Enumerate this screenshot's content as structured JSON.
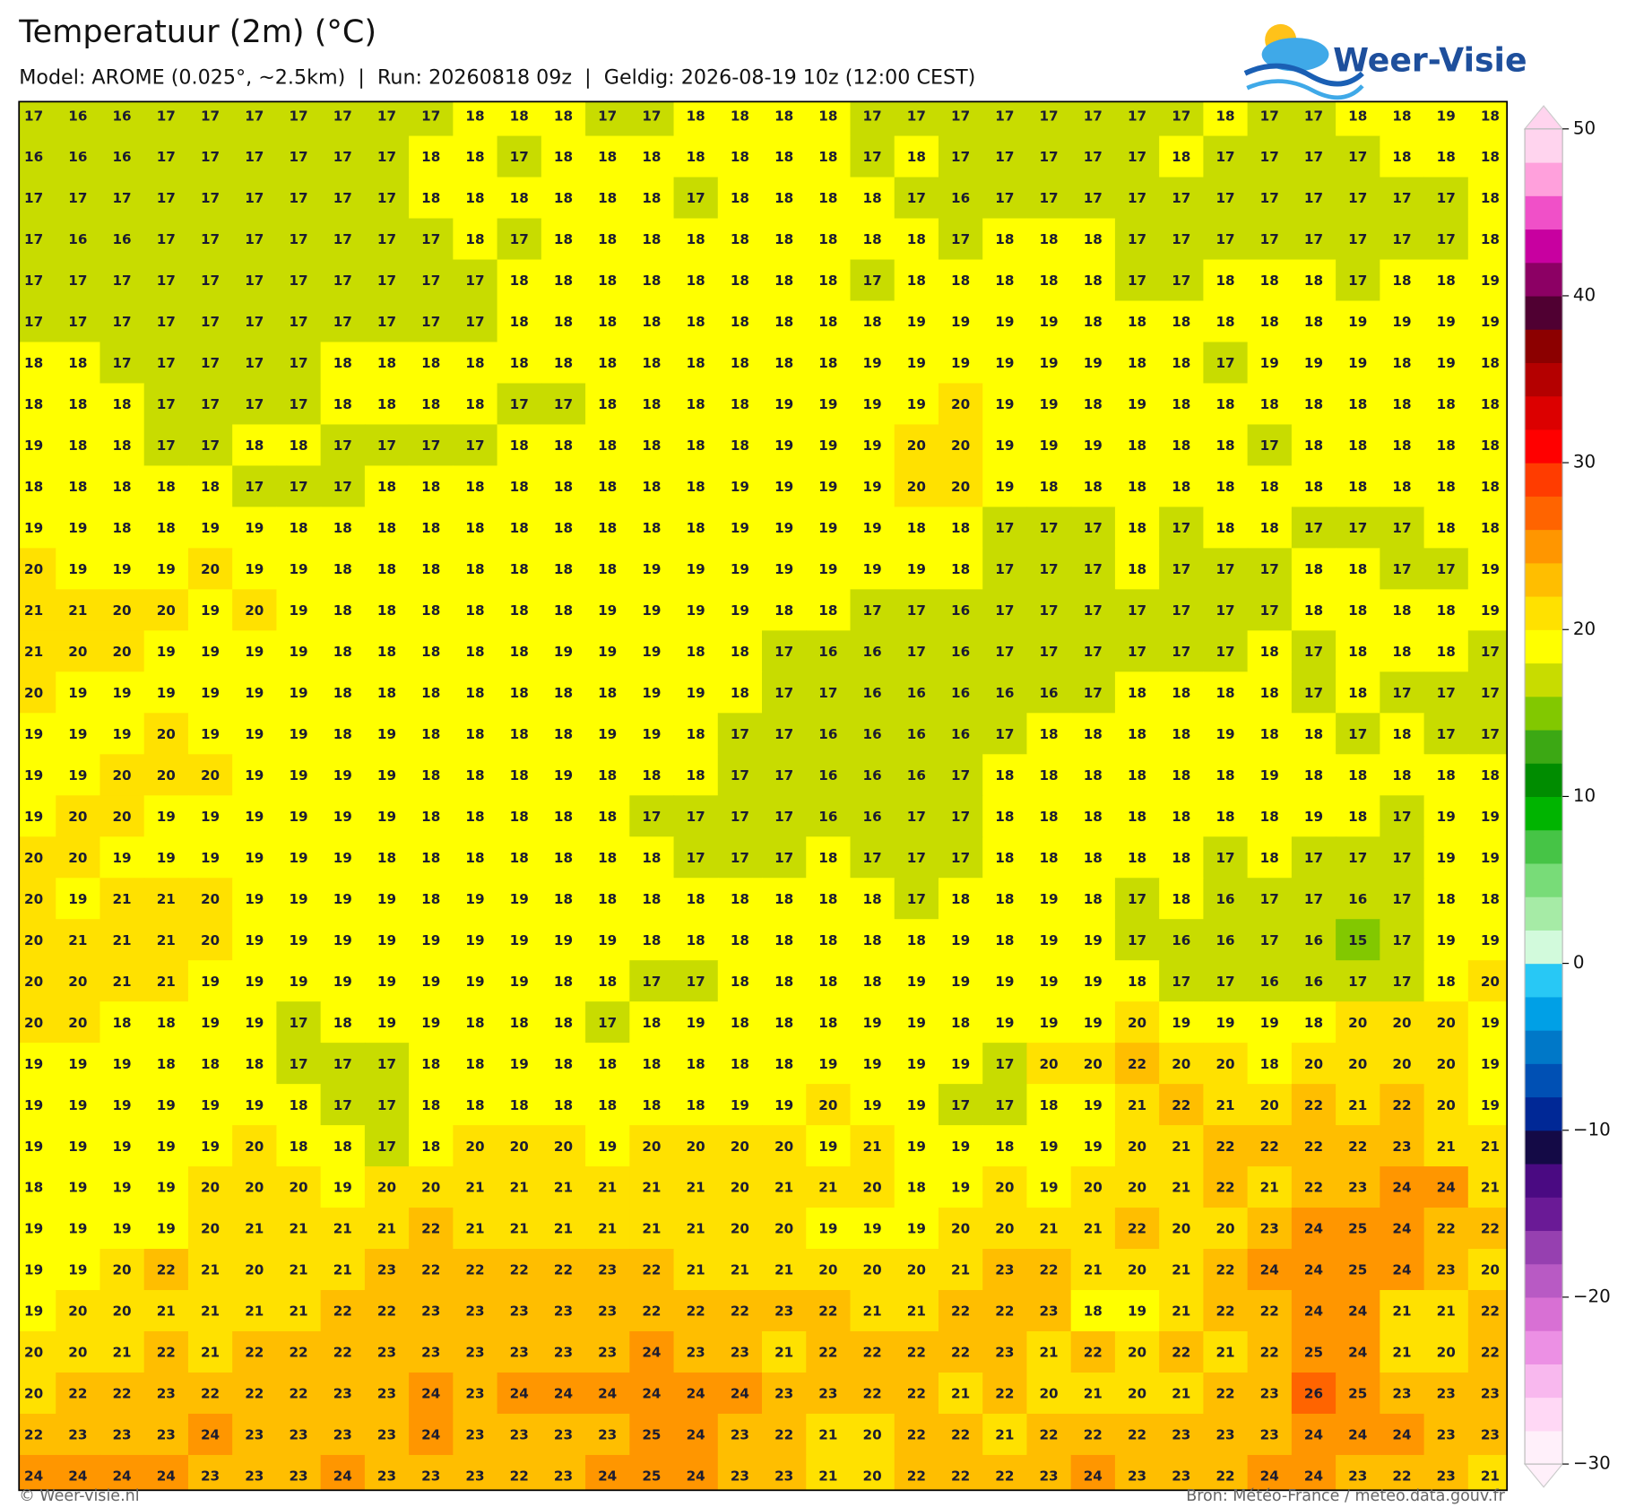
{
  "header": {
    "title": "Temperatuur (2m) (°C)",
    "subtitle": "Model: AROME (0.025°, ~2.5km)  |  Run: 20260818 09z  |  Geldig: 2026-08-19 10z (12:00 CEST)"
  },
  "logo": {
    "text": "Weer-Visie"
  },
  "map": {
    "rows": [
      [
        17,
        16,
        16,
        17,
        17,
        17,
        17,
        17,
        17,
        17,
        18,
        18,
        18,
        17,
        17,
        18,
        18,
        18,
        18,
        17,
        17,
        17,
        17,
        17,
        17,
        17,
        17,
        18,
        17,
        17,
        18,
        18,
        19,
        18
      ],
      [
        16,
        16,
        16,
        17,
        17,
        17,
        17,
        17,
        17,
        18,
        18,
        17,
        18,
        18,
        18,
        18,
        18,
        18,
        18,
        17,
        18,
        17,
        17,
        17,
        17,
        17,
        18,
        17,
        17,
        17,
        17,
        18,
        18,
        18
      ],
      [
        17,
        17,
        17,
        17,
        17,
        17,
        17,
        17,
        17,
        18,
        18,
        18,
        18,
        18,
        18,
        17,
        18,
        18,
        18,
        18,
        17,
        16,
        17,
        17,
        17,
        17,
        17,
        17,
        17,
        17,
        17,
        17,
        17,
        18
      ],
      [
        17,
        16,
        16,
        17,
        17,
        17,
        17,
        17,
        17,
        17,
        18,
        17,
        18,
        18,
        18,
        18,
        18,
        18,
        18,
        18,
        18,
        17,
        18,
        18,
        18,
        17,
        17,
        17,
        17,
        17,
        17,
        17,
        17,
        18
      ],
      [
        17,
        17,
        17,
        17,
        17,
        17,
        17,
        17,
        17,
        17,
        17,
        18,
        18,
        18,
        18,
        18,
        18,
        18,
        18,
        17,
        18,
        18,
        18,
        18,
        18,
        17,
        17,
        18,
        18,
        18,
        17,
        18,
        18,
        19
      ],
      [
        17,
        17,
        17,
        17,
        17,
        17,
        17,
        17,
        17,
        17,
        17,
        18,
        18,
        18,
        18,
        18,
        18,
        18,
        18,
        18,
        19,
        19,
        19,
        19,
        18,
        18,
        18,
        18,
        18,
        18,
        19,
        19,
        19,
        19
      ],
      [
        18,
        18,
        17,
        17,
        17,
        17,
        17,
        18,
        18,
        18,
        18,
        18,
        18,
        18,
        18,
        18,
        18,
        18,
        18,
        19,
        19,
        19,
        19,
        19,
        19,
        18,
        18,
        17,
        19,
        19,
        19,
        18,
        19,
        18
      ],
      [
        18,
        18,
        18,
        17,
        17,
        17,
        17,
        18,
        18,
        18,
        18,
        17,
        17,
        18,
        18,
        18,
        18,
        19,
        19,
        19,
        19,
        20,
        19,
        19,
        18,
        19,
        18,
        18,
        18,
        18,
        18,
        18,
        18,
        18
      ],
      [
        19,
        18,
        18,
        17,
        17,
        18,
        18,
        17,
        17,
        17,
        17,
        18,
        18,
        18,
        18,
        18,
        18,
        19,
        19,
        19,
        20,
        20,
        19,
        19,
        19,
        18,
        18,
        18,
        17,
        18,
        18,
        18,
        18,
        18
      ],
      [
        18,
        18,
        18,
        18,
        18,
        17,
        17,
        17,
        18,
        18,
        18,
        18,
        18,
        18,
        18,
        18,
        19,
        19,
        19,
        19,
        20,
        20,
        19,
        18,
        18,
        18,
        18,
        18,
        18,
        18,
        18,
        18,
        18,
        18
      ],
      [
        19,
        19,
        18,
        18,
        19,
        19,
        18,
        18,
        18,
        18,
        18,
        18,
        18,
        18,
        18,
        18,
        19,
        19,
        19,
        19,
        18,
        18,
        17,
        17,
        17,
        18,
        17,
        18,
        18,
        17,
        17,
        17,
        18,
        18
      ],
      [
        20,
        19,
        19,
        19,
        20,
        19,
        19,
        18,
        18,
        18,
        18,
        18,
        18,
        18,
        19,
        19,
        19,
        19,
        19,
        19,
        19,
        18,
        17,
        17,
        17,
        18,
        17,
        17,
        17,
        18,
        18,
        17,
        17,
        19
      ],
      [
        21,
        21,
        20,
        20,
        19,
        20,
        19,
        18,
        18,
        18,
        18,
        18,
        18,
        19,
        19,
        19,
        19,
        18,
        18,
        17,
        17,
        16,
        17,
        17,
        17,
        17,
        17,
        17,
        17,
        18,
        18,
        18,
        18,
        19
      ],
      [
        21,
        20,
        20,
        19,
        19,
        19,
        19,
        18,
        18,
        18,
        18,
        18,
        19,
        19,
        19,
        18,
        18,
        17,
        16,
        16,
        17,
        16,
        17,
        17,
        17,
        17,
        17,
        17,
        18,
        17,
        18,
        18,
        18,
        17
      ],
      [
        20,
        19,
        19,
        19,
        19,
        19,
        19,
        18,
        18,
        18,
        18,
        18,
        18,
        18,
        19,
        19,
        18,
        17,
        17,
        16,
        16,
        16,
        16,
        16,
        17,
        18,
        18,
        18,
        18,
        17,
        18,
        17,
        17,
        17
      ],
      [
        19,
        19,
        19,
        20,
        19,
        19,
        19,
        18,
        19,
        18,
        18,
        18,
        18,
        19,
        19,
        18,
        17,
        17,
        16,
        16,
        16,
        16,
        17,
        18,
        18,
        18,
        18,
        19,
        18,
        18,
        17,
        18,
        17,
        17
      ],
      [
        19,
        19,
        20,
        20,
        20,
        19,
        19,
        19,
        19,
        18,
        18,
        18,
        19,
        18,
        18,
        18,
        17,
        17,
        16,
        16,
        16,
        17,
        18,
        18,
        18,
        18,
        18,
        18,
        19,
        18,
        18,
        18,
        18,
        18
      ],
      [
        19,
        20,
        20,
        19,
        19,
        19,
        19,
        19,
        19,
        18,
        18,
        18,
        18,
        18,
        17,
        17,
        17,
        17,
        16,
        16,
        17,
        17,
        18,
        18,
        18,
        18,
        18,
        18,
        18,
        19,
        18,
        17,
        19,
        19
      ],
      [
        20,
        20,
        19,
        19,
        19,
        19,
        19,
        19,
        18,
        18,
        18,
        18,
        18,
        18,
        18,
        17,
        17,
        17,
        18,
        17,
        17,
        17,
        18,
        18,
        18,
        18,
        18,
        17,
        18,
        17,
        17,
        17,
        19,
        19
      ],
      [
        20,
        19,
        21,
        21,
        20,
        19,
        19,
        19,
        19,
        18,
        19,
        19,
        18,
        18,
        18,
        18,
        18,
        18,
        18,
        18,
        17,
        18,
        18,
        19,
        18,
        17,
        18,
        16,
        17,
        17,
        16,
        17,
        18,
        18
      ],
      [
        20,
        21,
        21,
        21,
        20,
        19,
        19,
        19,
        19,
        19,
        19,
        19,
        19,
        19,
        18,
        18,
        18,
        18,
        18,
        18,
        18,
        19,
        18,
        19,
        19,
        17,
        16,
        16,
        17,
        16,
        15,
        17,
        19,
        19
      ],
      [
        20,
        20,
        21,
        21,
        19,
        19,
        19,
        19,
        19,
        19,
        19,
        19,
        18,
        18,
        17,
        17,
        18,
        18,
        18,
        18,
        19,
        19,
        19,
        19,
        19,
        18,
        17,
        17,
        16,
        16,
        17,
        17,
        18,
        20
      ],
      [
        20,
        20,
        18,
        18,
        19,
        19,
        17,
        18,
        19,
        19,
        18,
        18,
        18,
        17,
        18,
        19,
        18,
        18,
        18,
        19,
        19,
        18,
        19,
        19,
        19,
        20,
        19,
        19,
        19,
        18,
        20,
        20,
        20,
        19
      ],
      [
        19,
        19,
        19,
        18,
        18,
        18,
        17,
        17,
        17,
        18,
        18,
        19,
        18,
        18,
        18,
        18,
        18,
        18,
        19,
        19,
        19,
        19,
        17,
        20,
        20,
        22,
        20,
        20,
        18,
        20,
        20,
        20,
        20,
        19
      ],
      [
        19,
        19,
        19,
        19,
        19,
        19,
        18,
        17,
        17,
        18,
        18,
        18,
        18,
        18,
        18,
        18,
        19,
        19,
        20,
        19,
        19,
        17,
        17,
        18,
        19,
        21,
        22,
        21,
        20,
        22,
        21,
        22,
        20,
        19
      ],
      [
        19,
        19,
        19,
        19,
        19,
        20,
        18,
        18,
        17,
        18,
        20,
        20,
        20,
        19,
        20,
        20,
        20,
        20,
        19,
        21,
        19,
        19,
        18,
        19,
        19,
        20,
        21,
        22,
        22,
        22,
        22,
        23,
        21,
        21
      ],
      [
        18,
        19,
        19,
        19,
        20,
        20,
        20,
        19,
        20,
        20,
        21,
        21,
        21,
        21,
        21,
        21,
        20,
        21,
        21,
        20,
        18,
        19,
        20,
        19,
        20,
        20,
        21,
        22,
        21,
        22,
        23,
        24,
        24,
        21
      ],
      [
        19,
        19,
        19,
        19,
        20,
        21,
        21,
        21,
        21,
        22,
        21,
        21,
        21,
        21,
        21,
        21,
        20,
        20,
        19,
        19,
        19,
        20,
        20,
        21,
        21,
        22,
        20,
        20,
        23,
        24,
        25,
        24,
        22,
        22
      ],
      [
        19,
        19,
        20,
        22,
        21,
        20,
        21,
        21,
        23,
        22,
        22,
        22,
        22,
        23,
        22,
        21,
        21,
        21,
        20,
        20,
        20,
        21,
        23,
        22,
        21,
        20,
        21,
        22,
        24,
        24,
        25,
        24,
        23,
        20
      ],
      [
        19,
        20,
        20,
        21,
        21,
        21,
        21,
        22,
        22,
        23,
        23,
        23,
        23,
        23,
        22,
        22,
        22,
        23,
        22,
        21,
        21,
        22,
        22,
        23,
        18,
        19,
        21,
        22,
        22,
        24,
        24,
        21,
        21,
        22
      ],
      [
        20,
        20,
        21,
        22,
        21,
        22,
        22,
        22,
        23,
        23,
        23,
        23,
        23,
        23,
        24,
        23,
        23,
        21,
        22,
        22,
        22,
        22,
        23,
        21,
        22,
        20,
        22,
        21,
        22,
        25,
        24,
        21,
        20,
        22
      ],
      [
        20,
        22,
        22,
        23,
        22,
        22,
        22,
        23,
        23,
        24,
        23,
        24,
        24,
        24,
        24,
        24,
        24,
        23,
        23,
        22,
        22,
        21,
        22,
        20,
        21,
        20,
        21,
        22,
        23,
        26,
        25,
        23,
        23,
        23
      ],
      [
        22,
        23,
        23,
        23,
        24,
        23,
        23,
        23,
        23,
        24,
        23,
        23,
        23,
        23,
        25,
        24,
        23,
        22,
        21,
        20,
        22,
        22,
        21,
        22,
        22,
        22,
        23,
        23,
        23,
        24,
        24,
        24,
        23,
        23
      ],
      [
        24,
        24,
        24,
        24,
        23,
        23,
        23,
        24,
        23,
        23,
        23,
        22,
        23,
        24,
        25,
        24,
        23,
        23,
        21,
        20,
        22,
        22,
        22,
        23,
        24,
        23,
        23,
        22,
        24,
        24,
        23,
        22,
        23,
        21
      ]
    ],
    "colorbar": {
      "clim": [
        -30,
        50
      ],
      "ticks": [
        50,
        40,
        30,
        20,
        10,
        0,
        {
          "value": -10,
          "label": "−10"
        },
        {
          "value": -20,
          "label": "−20"
        },
        {
          "value": -30,
          "label": "−30"
        }
      ],
      "colors": [
        "#fff0fa",
        "#ffd8f5",
        "#f8b8ee",
        "#ec90e4",
        "#d870d4",
        "#b85ac4",
        "#9640b0",
        "#6a1a96",
        "#4a0a82",
        "#140a46",
        "#002896",
        "#0050b4",
        "#0078c8",
        "#00a0e6",
        "#28c8f5",
        "#d2fadc",
        "#a6eba6",
        "#78dc78",
        "#46c446",
        "#00b400",
        "#008c00",
        "#3ca814",
        "#82c800",
        "#c8dc00",
        "#ffff00",
        "#ffe100",
        "#ffbe00",
        "#ff9600",
        "#ff6400",
        "#ff3c00",
        "#ff0000",
        "#dc0000",
        "#b40000",
        "#8c0000",
        "#500032",
        "#8c0064",
        "#c800a0",
        "#f050c8",
        "#ffa0dc",
        "#ffd4ee"
      ]
    }
  },
  "footer": {
    "credit": "© Weer-visie.nl",
    "source": "Bron: Météo-France / meteo.data.gouv.fr"
  }
}
